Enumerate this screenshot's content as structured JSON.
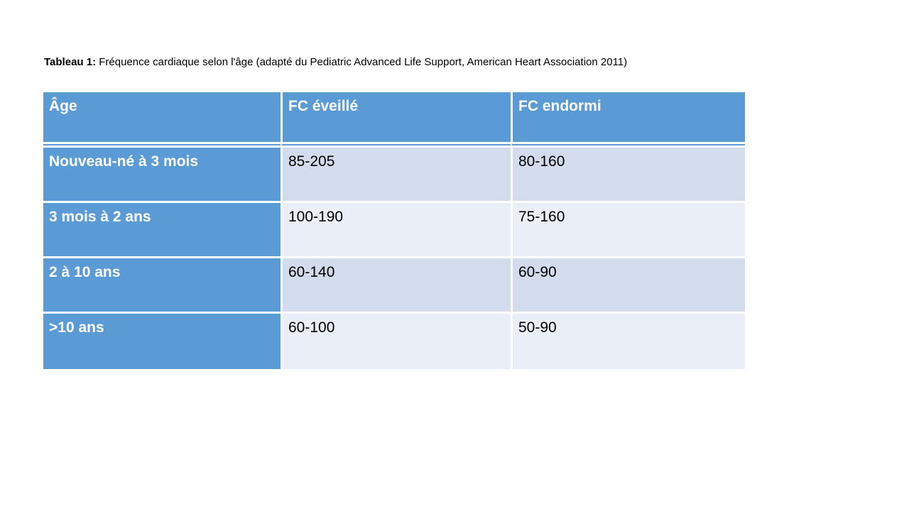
{
  "caption": {
    "label": "Tableau 1:",
    "text": " Fréquence cardiaque selon l'âge (adapté du Pediatric Advanced Life Support, American Heart Association 2011)"
  },
  "table": {
    "columns": [
      "Âge",
      "FC éveillé",
      "FC endormi"
    ],
    "rows": [
      [
        "Nouveau-né à 3 mois",
        "85-205",
        "80-160"
      ],
      [
        "3 mois à 2 ans",
        "100-190",
        "75-160"
      ],
      [
        "2 à 10 ans",
        "60-140",
        "60-90"
      ],
      [
        ">10 ans",
        "60-100",
        "50-90"
      ]
    ]
  },
  "colors": {
    "header_blue": "#5B9BD5",
    "band_dark": "#D2DCED",
    "band_light": "#EAEEF6",
    "border_white": "#FFFFFF"
  }
}
